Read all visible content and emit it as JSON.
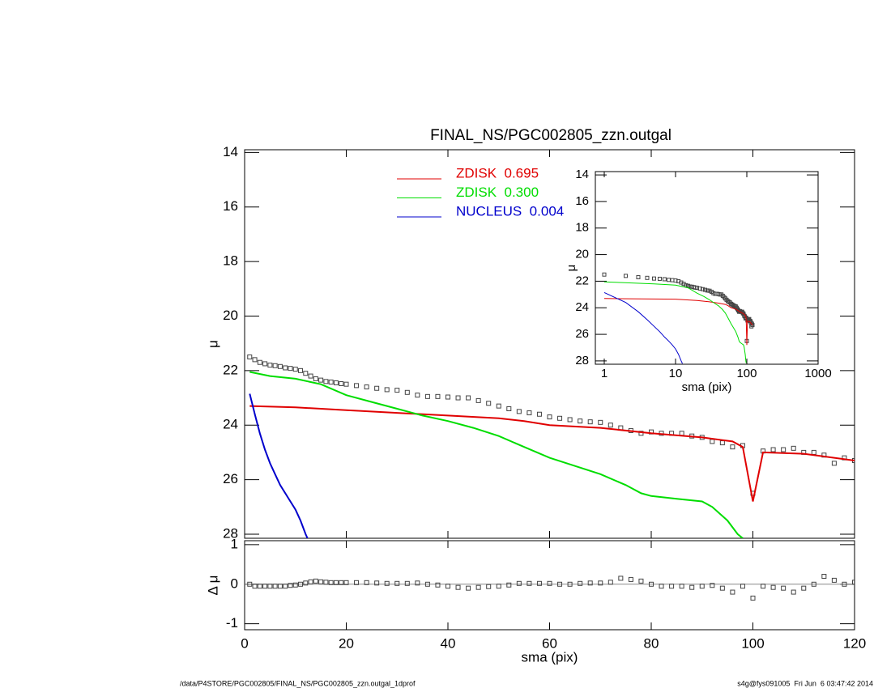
{
  "chart_data": [
    {
      "type": "line",
      "title": "FINAL_NS/PGC002805_zzn.outgal",
      "ylabel": "μ",
      "xlim": [
        0,
        120
      ],
      "xticks": [
        0,
        20,
        40,
        60,
        80,
        100,
        120
      ],
      "ylim": [
        13.9,
        28.15
      ],
      "y_reversed": true,
      "yticks": [
        14,
        16,
        18,
        20,
        22,
        24,
        26,
        28
      ],
      "legend": true,
      "series": [
        {
          "marker": "square",
          "color": "#444444",
          "x": [
            1,
            2,
            3,
            4,
            5,
            6,
            7,
            8,
            9,
            10,
            11,
            12,
            13,
            14,
            15,
            16,
            17,
            18,
            19,
            20,
            22,
            24,
            26,
            28,
            30,
            32,
            34,
            36,
            38,
            40,
            42,
            44,
            46,
            48,
            50,
            52,
            54,
            56,
            58,
            60,
            62,
            64,
            66,
            68,
            70,
            72,
            74,
            76,
            78,
            80,
            82,
            84,
            86,
            88,
            90,
            92,
            94,
            96,
            98,
            100,
            102,
            104,
            106,
            108,
            110,
            112,
            114,
            116,
            118,
            120
          ],
          "values": [
            21.5,
            21.6,
            21.7,
            21.75,
            21.8,
            21.82,
            21.85,
            21.9,
            21.92,
            21.95,
            22.0,
            22.1,
            22.2,
            22.3,
            22.35,
            22.4,
            22.42,
            22.45,
            22.48,
            22.5,
            22.55,
            22.6,
            22.65,
            22.7,
            22.72,
            22.8,
            22.9,
            22.95,
            22.95,
            22.97,
            23.0,
            23.0,
            23.1,
            23.2,
            23.3,
            23.4,
            23.5,
            23.55,
            23.6,
            23.7,
            23.75,
            23.8,
            23.85,
            23.88,
            23.9,
            24.0,
            24.1,
            24.2,
            24.3,
            24.25,
            24.3,
            24.3,
            24.3,
            24.4,
            24.45,
            24.6,
            24.65,
            24.8,
            24.75,
            26.5,
            24.95,
            24.9,
            24.9,
            24.85,
            25.0,
            25.0,
            25.1,
            25.4,
            25.2,
            25.3
          ]
        },
        {
          "name": "ZDISK  0.695",
          "color": "#e00000",
          "x": [
            1,
            10,
            20,
            30,
            40,
            50,
            55,
            60,
            70,
            80,
            90,
            96,
            98,
            100,
            102,
            110,
            120
          ],
          "values": [
            23.3,
            23.35,
            23.45,
            23.55,
            23.65,
            23.75,
            23.85,
            24.0,
            24.1,
            24.3,
            24.45,
            24.6,
            24.8,
            26.8,
            25.0,
            25.05,
            25.3
          ]
        },
        {
          "name": "ZDISK  0.300",
          "color": "#00dd00",
          "x": [
            1,
            5,
            10,
            15,
            20,
            25,
            30,
            35,
            40,
            45,
            50,
            55,
            60,
            65,
            70,
            75,
            78,
            80,
            85,
            90,
            92,
            95,
            97,
            98
          ],
          "values": [
            22.05,
            22.2,
            22.3,
            22.5,
            22.9,
            23.15,
            23.4,
            23.65,
            23.85,
            24.1,
            24.4,
            24.8,
            25.2,
            25.5,
            25.8,
            26.2,
            26.5,
            26.6,
            26.7,
            26.8,
            27.0,
            27.5,
            28.0,
            28.15
          ]
        },
        {
          "name": "NUCLEUS  0.004",
          "color": "#0000cc",
          "x": [
            1,
            2,
            3,
            4,
            5,
            6,
            7,
            8,
            9,
            10,
            11,
            12,
            12.5
          ],
          "values": [
            22.85,
            23.6,
            24.3,
            24.9,
            25.4,
            25.8,
            26.2,
            26.5,
            26.8,
            27.1,
            27.5,
            28.0,
            28.2
          ]
        }
      ]
    },
    {
      "type": "scatter",
      "xlabel": "sma (pix)",
      "ylabel": "Δ μ",
      "xlim": [
        0,
        120
      ],
      "xticks": [
        0,
        20,
        40,
        60,
        80,
        100,
        120
      ],
      "ylim": [
        -1.15,
        1.1
      ],
      "yticks": [
        -1,
        0,
        1
      ],
      "reference_line": 0,
      "series": [
        {
          "marker": "square",
          "color": "#444444",
          "x": [
            1,
            2,
            3,
            4,
            5,
            6,
            7,
            8,
            9,
            10,
            11,
            12,
            13,
            14,
            15,
            16,
            17,
            18,
            19,
            20,
            22,
            24,
            26,
            28,
            30,
            32,
            34,
            36,
            38,
            40,
            42,
            44,
            46,
            48,
            50,
            52,
            54,
            56,
            58,
            60,
            62,
            64,
            66,
            68,
            70,
            72,
            74,
            76,
            78,
            80,
            82,
            84,
            86,
            88,
            90,
            92,
            94,
            96,
            98,
            100,
            102,
            104,
            106,
            108,
            110,
            112,
            114,
            116,
            118,
            120
          ],
          "values": [
            0,
            -0.05,
            -0.05,
            -0.05,
            -0.05,
            -0.05,
            -0.05,
            -0.05,
            -0.03,
            -0.02,
            0,
            0.03,
            0.06,
            0.08,
            0.06,
            0.05,
            0.04,
            0.04,
            0.04,
            0.04,
            0.04,
            0.04,
            0.03,
            0.02,
            0.02,
            0.02,
            0.03,
            0,
            -0.02,
            -0.05,
            -0.08,
            -0.1,
            -0.08,
            -0.06,
            -0.05,
            -0.02,
            0.02,
            0.02,
            0.02,
            0.02,
            0,
            0,
            0.02,
            0.03,
            0.03,
            0.05,
            0.15,
            0.12,
            0.08,
            0,
            -0.05,
            -0.05,
            -0.05,
            -0.08,
            -0.05,
            -0.03,
            -0.1,
            -0.2,
            -0.05,
            -0.35,
            -0.05,
            -0.08,
            -0.1,
            -0.2,
            -0.1,
            0,
            0.2,
            0.1,
            0,
            0.05
          ]
        }
      ]
    },
    {
      "type": "inset",
      "xlabel": "sma (pix)",
      "ylabel": "μ",
      "xlog": true,
      "xlim": [
        0.75,
        1000
      ],
      "xticks": [
        1,
        10,
        100,
        1000
      ],
      "ylim": [
        13.75,
        28.25
      ],
      "y_reversed": true,
      "yticks": [
        14,
        16,
        18,
        20,
        22,
        24,
        26,
        28
      ]
    }
  ],
  "footer": {
    "left": "/data/P4STORE/PGC002805/FINAL_NS/PGC002805_zzn.outgal_1dprof",
    "right": "s4g@fys091005  Fri Jun  6 03:47:42 2014"
  }
}
